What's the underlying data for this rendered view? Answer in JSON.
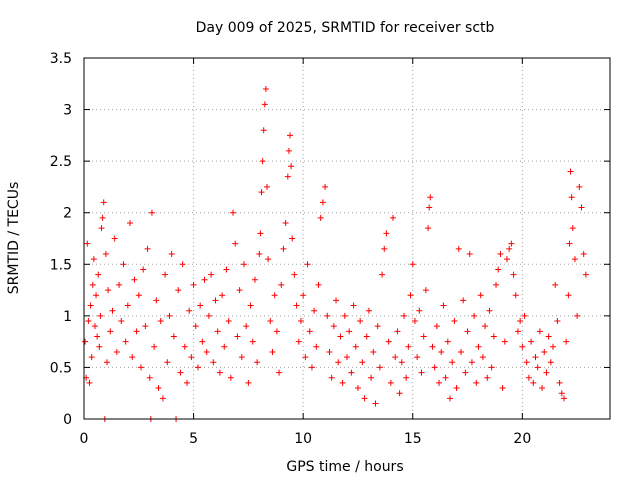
{
  "chart_data": {
    "type": "scatter",
    "title": "Day 009 of 2025, SRMTID for receiver sctb",
    "xlabel": "GPS time / hours",
    "ylabel": "SRMTID / TECUs",
    "xlim": [
      0,
      24
    ],
    "ylim": [
      0,
      3.5
    ],
    "xticks": [
      0,
      5,
      10,
      15,
      20
    ],
    "yticks": [
      0,
      0.5,
      1,
      1.5,
      2,
      2.5,
      3,
      3.5
    ],
    "xtick_labels": [
      "0",
      "5",
      "10",
      "15",
      "20"
    ],
    "ytick_labels": [
      "0",
      "0.5",
      "1",
      "1.5",
      "2",
      "2.5",
      "3",
      "3.5"
    ],
    "grid": true,
    "marker": "+",
    "marker_color": "#ff0000",
    "series": [
      {
        "name": "SRMTID",
        "points": [
          [
            0.05,
            0.75
          ],
          [
            0.1,
            0.4
          ],
          [
            0.15,
            1.7
          ],
          [
            0.2,
            0.95
          ],
          [
            0.25,
            0.35
          ],
          [
            0.3,
            1.1
          ],
          [
            0.35,
            0.6
          ],
          [
            0.4,
            1.3
          ],
          [
            0.45,
            1.55
          ],
          [
            0.5,
            0.9
          ],
          [
            0.55,
            1.2
          ],
          [
            0.6,
            0.8
          ],
          [
            0.65,
            1.4
          ],
          [
            0.7,
            0.7
          ],
          [
            0.75,
            1.0
          ],
          [
            0.8,
            1.85
          ],
          [
            0.85,
            1.95
          ],
          [
            0.9,
            2.1
          ],
          [
            0.95,
            0.0
          ],
          [
            1.0,
            1.6
          ],
          [
            1.05,
            0.55
          ],
          [
            1.1,
            1.25
          ],
          [
            1.2,
            0.85
          ],
          [
            1.3,
            1.05
          ],
          [
            1.4,
            1.75
          ],
          [
            1.5,
            0.65
          ],
          [
            1.6,
            1.3
          ],
          [
            1.7,
            0.95
          ],
          [
            1.8,
            1.5
          ],
          [
            1.9,
            0.75
          ],
          [
            2.0,
            1.1
          ],
          [
            2.1,
            1.9
          ],
          [
            2.2,
            0.6
          ],
          [
            2.3,
            1.35
          ],
          [
            2.4,
            0.85
          ],
          [
            2.5,
            1.2
          ],
          [
            2.6,
            0.5
          ],
          [
            2.7,
            1.45
          ],
          [
            2.8,
            0.9
          ],
          [
            2.9,
            1.65
          ],
          [
            3.0,
            0.4
          ],
          [
            3.05,
            0.0
          ],
          [
            3.1,
            2.0
          ],
          [
            3.2,
            0.7
          ],
          [
            3.3,
            1.15
          ],
          [
            3.4,
            0.3
          ],
          [
            3.5,
            0.95
          ],
          [
            3.6,
            0.2
          ],
          [
            3.7,
            1.4
          ],
          [
            3.8,
            0.55
          ],
          [
            3.9,
            1.0
          ],
          [
            4.0,
            1.6
          ],
          [
            4.1,
            0.8
          ],
          [
            4.2,
            0.0
          ],
          [
            4.3,
            1.25
          ],
          [
            4.4,
            0.45
          ],
          [
            4.5,
            1.5
          ],
          [
            4.6,
            0.7
          ],
          [
            4.7,
            0.35
          ],
          [
            4.8,
            1.05
          ],
          [
            4.9,
            0.6
          ],
          [
            5.0,
            1.3
          ],
          [
            5.1,
            0.9
          ],
          [
            5.2,
            0.5
          ],
          [
            5.3,
            1.1
          ],
          [
            5.4,
            0.75
          ],
          [
            5.5,
            1.35
          ],
          [
            5.6,
            0.65
          ],
          [
            5.7,
            1.0
          ],
          [
            5.8,
            1.4
          ],
          [
            5.9,
            0.55
          ],
          [
            6.0,
            1.15
          ],
          [
            6.1,
            0.85
          ],
          [
            6.2,
            0.45
          ],
          [
            6.3,
            1.2
          ],
          [
            6.4,
            0.7
          ],
          [
            6.5,
            1.45
          ],
          [
            6.6,
            0.95
          ],
          [
            6.7,
            0.4
          ],
          [
            6.8,
            2.0
          ],
          [
            6.9,
            1.7
          ],
          [
            7.0,
            0.8
          ],
          [
            7.1,
            1.25
          ],
          [
            7.2,
            0.6
          ],
          [
            7.3,
            1.5
          ],
          [
            7.4,
            0.9
          ],
          [
            7.5,
            0.35
          ],
          [
            7.6,
            1.1
          ],
          [
            7.7,
            0.75
          ],
          [
            7.8,
            1.35
          ],
          [
            7.9,
            0.55
          ],
          [
            8.0,
            1.6
          ],
          [
            8.05,
            1.8
          ],
          [
            8.1,
            2.2
          ],
          [
            8.15,
            2.5
          ],
          [
            8.2,
            2.8
          ],
          [
            8.25,
            3.05
          ],
          [
            8.3,
            3.2
          ],
          [
            8.35,
            2.25
          ],
          [
            8.4,
            1.55
          ],
          [
            8.5,
            0.95
          ],
          [
            8.6,
            0.65
          ],
          [
            8.7,
            1.2
          ],
          [
            8.8,
            0.85
          ],
          [
            8.9,
            0.45
          ],
          [
            9.0,
            1.3
          ],
          [
            9.1,
            1.65
          ],
          [
            9.2,
            1.9
          ],
          [
            9.3,
            2.35
          ],
          [
            9.35,
            2.6
          ],
          [
            9.4,
            2.75
          ],
          [
            9.45,
            2.45
          ],
          [
            9.5,
            1.75
          ],
          [
            9.6,
            1.4
          ],
          [
            9.7,
            1.1
          ],
          [
            9.8,
            0.75
          ],
          [
            9.9,
            0.95
          ],
          [
            10.0,
            1.2
          ],
          [
            10.1,
            0.6
          ],
          [
            10.2,
            1.5
          ],
          [
            10.3,
            0.85
          ],
          [
            10.4,
            0.5
          ],
          [
            10.5,
            1.05
          ],
          [
            10.6,
            0.7
          ],
          [
            10.7,
            1.3
          ],
          [
            10.8,
            1.95
          ],
          [
            10.9,
            2.1
          ],
          [
            11.0,
            2.25
          ],
          [
            11.1,
            1.0
          ],
          [
            11.2,
            0.65
          ],
          [
            11.3,
            0.4
          ],
          [
            11.4,
            0.9
          ],
          [
            11.5,
            1.15
          ],
          [
            11.6,
            0.55
          ],
          [
            11.7,
            0.8
          ],
          [
            11.8,
            0.35
          ],
          [
            11.9,
            1.0
          ],
          [
            12.0,
            0.6
          ],
          [
            12.1,
            0.85
          ],
          [
            12.2,
            0.45
          ],
          [
            12.3,
            1.1
          ],
          [
            12.4,
            0.7
          ],
          [
            12.5,
            0.3
          ],
          [
            12.6,
            0.95
          ],
          [
            12.7,
            0.55
          ],
          [
            12.8,
            0.2
          ],
          [
            12.9,
            0.8
          ],
          [
            13.0,
            1.05
          ],
          [
            13.1,
            0.4
          ],
          [
            13.2,
            0.65
          ],
          [
            13.3,
            0.15
          ],
          [
            13.4,
            0.9
          ],
          [
            13.5,
            0.5
          ],
          [
            13.6,
            1.4
          ],
          [
            13.7,
            1.65
          ],
          [
            13.8,
            1.8
          ],
          [
            13.9,
            0.75
          ],
          [
            14.0,
            0.35
          ],
          [
            14.1,
            1.95
          ],
          [
            14.2,
            0.6
          ],
          [
            14.3,
            0.85
          ],
          [
            14.4,
            0.25
          ],
          [
            14.5,
            0.55
          ],
          [
            14.6,
            1.0
          ],
          [
            14.7,
            0.4
          ],
          [
            14.8,
            0.7
          ],
          [
            14.9,
            1.2
          ],
          [
            15.0,
            1.5
          ],
          [
            15.1,
            0.95
          ],
          [
            15.2,
            0.6
          ],
          [
            15.3,
            1.05
          ],
          [
            15.4,
            0.45
          ],
          [
            15.5,
            0.8
          ],
          [
            15.6,
            1.25
          ],
          [
            15.7,
            1.85
          ],
          [
            15.75,
            2.05
          ],
          [
            15.8,
            2.15
          ],
          [
            15.9,
            0.7
          ],
          [
            16.0,
            0.5
          ],
          [
            16.1,
            0.9
          ],
          [
            16.2,
            0.35
          ],
          [
            16.3,
            0.65
          ],
          [
            16.4,
            1.1
          ],
          [
            16.5,
            0.4
          ],
          [
            16.6,
            0.75
          ],
          [
            16.7,
            0.2
          ],
          [
            16.8,
            0.55
          ],
          [
            16.9,
            0.95
          ],
          [
            17.0,
            0.3
          ],
          [
            17.1,
            1.65
          ],
          [
            17.2,
            0.65
          ],
          [
            17.3,
            1.15
          ],
          [
            17.4,
            0.45
          ],
          [
            17.5,
            0.85
          ],
          [
            17.6,
            1.6
          ],
          [
            17.7,
            0.55
          ],
          [
            17.8,
            1.0
          ],
          [
            17.9,
            0.35
          ],
          [
            18.0,
            0.7
          ],
          [
            18.1,
            1.2
          ],
          [
            18.2,
            0.6
          ],
          [
            18.3,
            0.9
          ],
          [
            18.4,
            0.4
          ],
          [
            18.5,
            1.05
          ],
          [
            18.6,
            0.5
          ],
          [
            18.7,
            0.8
          ],
          [
            18.8,
            1.3
          ],
          [
            18.9,
            1.45
          ],
          [
            19.0,
            1.6
          ],
          [
            19.1,
            0.3
          ],
          [
            19.2,
            0.75
          ],
          [
            19.3,
            1.55
          ],
          [
            19.4,
            1.65
          ],
          [
            19.5,
            1.7
          ],
          [
            19.6,
            1.4
          ],
          [
            19.7,
            1.2
          ],
          [
            19.8,
            0.85
          ],
          [
            19.9,
            0.95
          ],
          [
            20.0,
            0.7
          ],
          [
            20.1,
            1.0
          ],
          [
            20.2,
            0.55
          ],
          [
            20.3,
            0.4
          ],
          [
            20.4,
            0.75
          ],
          [
            20.5,
            0.35
          ],
          [
            20.6,
            0.6
          ],
          [
            20.7,
            0.5
          ],
          [
            20.8,
            0.85
          ],
          [
            20.9,
            0.3
          ],
          [
            21.0,
            0.65
          ],
          [
            21.1,
            0.45
          ],
          [
            21.2,
            0.8
          ],
          [
            21.3,
            0.55
          ],
          [
            21.4,
            0.7
          ],
          [
            21.5,
            1.3
          ],
          [
            21.6,
            0.95
          ],
          [
            21.7,
            0.35
          ],
          [
            21.8,
            0.25
          ],
          [
            21.9,
            0.2
          ],
          [
            22.0,
            0.75
          ],
          [
            22.1,
            1.2
          ],
          [
            22.15,
            1.7
          ],
          [
            22.2,
            2.4
          ],
          [
            22.25,
            2.15
          ],
          [
            22.3,
            1.85
          ],
          [
            22.4,
            1.55
          ],
          [
            22.5,
            1.0
          ],
          [
            22.6,
            2.25
          ],
          [
            22.7,
            2.05
          ],
          [
            22.8,
            1.6
          ],
          [
            22.9,
            1.4
          ]
        ]
      }
    ]
  }
}
